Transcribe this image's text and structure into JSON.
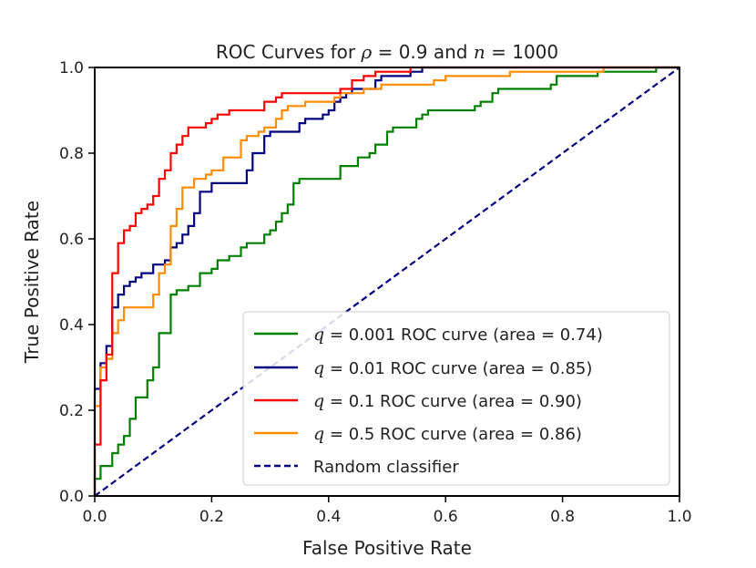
{
  "chart_data": {
    "type": "line",
    "title_parts": [
      "ROC Curves for ",
      "ρ",
      " = 0.9 and ",
      "n",
      " = 1000"
    ],
    "xlabel": "False Positive Rate",
    "ylabel": "True Positive Rate",
    "xlim": [
      0,
      1
    ],
    "ylim": [
      0,
      1
    ],
    "xticks": [
      "0.0",
      "0.2",
      "0.4",
      "0.6",
      "0.8",
      "1.0"
    ],
    "yticks": [
      "0.0",
      "0.2",
      "0.4",
      "0.6",
      "0.8",
      "1.0"
    ],
    "grid": false,
    "legend_position": "lower-right",
    "series": [
      {
        "id": "q0001",
        "name": "q = 0.001 ROC curve (area = 0.74)",
        "legend_var": "q",
        "legend_rest": " = 0.001 ROC curve (area = 0.74)",
        "color": "#008000",
        "style": "solid",
        "points": [
          [
            0,
            0
          ],
          [
            0,
            0.04
          ],
          [
            0.01,
            0.04
          ],
          [
            0.01,
            0.07
          ],
          [
            0.03,
            0.07
          ],
          [
            0.03,
            0.1
          ],
          [
            0.04,
            0.1
          ],
          [
            0.04,
            0.12
          ],
          [
            0.05,
            0.12
          ],
          [
            0.05,
            0.14
          ],
          [
            0.06,
            0.14
          ],
          [
            0.06,
            0.18
          ],
          [
            0.07,
            0.18
          ],
          [
            0.07,
            0.23
          ],
          [
            0.09,
            0.23
          ],
          [
            0.09,
            0.27
          ],
          [
            0.1,
            0.27
          ],
          [
            0.1,
            0.3
          ],
          [
            0.11,
            0.3
          ],
          [
            0.11,
            0.38
          ],
          [
            0.13,
            0.38
          ],
          [
            0.13,
            0.47
          ],
          [
            0.14,
            0.47
          ],
          [
            0.14,
            0.48
          ],
          [
            0.16,
            0.48
          ],
          [
            0.16,
            0.49
          ],
          [
            0.18,
            0.49
          ],
          [
            0.18,
            0.52
          ],
          [
            0.2,
            0.52
          ],
          [
            0.2,
            0.53
          ],
          [
            0.21,
            0.53
          ],
          [
            0.21,
            0.55
          ],
          [
            0.23,
            0.55
          ],
          [
            0.23,
            0.56
          ],
          [
            0.25,
            0.56
          ],
          [
            0.25,
            0.58
          ],
          [
            0.26,
            0.58
          ],
          [
            0.26,
            0.59
          ],
          [
            0.29,
            0.59
          ],
          [
            0.29,
            0.61
          ],
          [
            0.3,
            0.61
          ],
          [
            0.3,
            0.62
          ],
          [
            0.31,
            0.62
          ],
          [
            0.31,
            0.64
          ],
          [
            0.32,
            0.64
          ],
          [
            0.32,
            0.66
          ],
          [
            0.33,
            0.66
          ],
          [
            0.33,
            0.68
          ],
          [
            0.34,
            0.68
          ],
          [
            0.34,
            0.73
          ],
          [
            0.35,
            0.73
          ],
          [
            0.35,
            0.74
          ],
          [
            0.42,
            0.74
          ],
          [
            0.42,
            0.77
          ],
          [
            0.45,
            0.77
          ],
          [
            0.45,
            0.79
          ],
          [
            0.47,
            0.79
          ],
          [
            0.47,
            0.8
          ],
          [
            0.48,
            0.8
          ],
          [
            0.48,
            0.82
          ],
          [
            0.5,
            0.82
          ],
          [
            0.5,
            0.85
          ],
          [
            0.51,
            0.85
          ],
          [
            0.51,
            0.86
          ],
          [
            0.55,
            0.86
          ],
          [
            0.55,
            0.88
          ],
          [
            0.56,
            0.88
          ],
          [
            0.56,
            0.89
          ],
          [
            0.57,
            0.89
          ],
          [
            0.57,
            0.9
          ],
          [
            0.65,
            0.9
          ],
          [
            0.65,
            0.91
          ],
          [
            0.66,
            0.91
          ],
          [
            0.66,
            0.92
          ],
          [
            0.68,
            0.92
          ],
          [
            0.68,
            0.94
          ],
          [
            0.69,
            0.94
          ],
          [
            0.69,
            0.95
          ],
          [
            0.78,
            0.95
          ],
          [
            0.78,
            0.96
          ],
          [
            0.79,
            0.96
          ],
          [
            0.79,
            0.98
          ],
          [
            0.86,
            0.98
          ],
          [
            0.86,
            0.99
          ],
          [
            0.96,
            0.99
          ],
          [
            0.96,
            1.0
          ],
          [
            1.0,
            1.0
          ]
        ]
      },
      {
        "id": "q001",
        "name": "q = 0.01 ROC curve (area = 0.85)",
        "legend_var": "q",
        "legend_rest": " = 0.01 ROC curve (area = 0.85)",
        "color": "#000080",
        "style": "solid",
        "points": [
          [
            0,
            0
          ],
          [
            0,
            0.25
          ],
          [
            0.01,
            0.25
          ],
          [
            0.01,
            0.31
          ],
          [
            0.02,
            0.31
          ],
          [
            0.02,
            0.35
          ],
          [
            0.03,
            0.35
          ],
          [
            0.03,
            0.44
          ],
          [
            0.04,
            0.44
          ],
          [
            0.04,
            0.47
          ],
          [
            0.05,
            0.47
          ],
          [
            0.05,
            0.49
          ],
          [
            0.06,
            0.49
          ],
          [
            0.06,
            0.5
          ],
          [
            0.07,
            0.5
          ],
          [
            0.07,
            0.51
          ],
          [
            0.08,
            0.51
          ],
          [
            0.08,
            0.52
          ],
          [
            0.1,
            0.52
          ],
          [
            0.1,
            0.54
          ],
          [
            0.12,
            0.54
          ],
          [
            0.12,
            0.55
          ],
          [
            0.13,
            0.55
          ],
          [
            0.13,
            0.58
          ],
          [
            0.14,
            0.58
          ],
          [
            0.14,
            0.59
          ],
          [
            0.15,
            0.59
          ],
          [
            0.15,
            0.61
          ],
          [
            0.16,
            0.61
          ],
          [
            0.16,
            0.63
          ],
          [
            0.17,
            0.63
          ],
          [
            0.17,
            0.66
          ],
          [
            0.18,
            0.66
          ],
          [
            0.18,
            0.71
          ],
          [
            0.2,
            0.71
          ],
          [
            0.2,
            0.73
          ],
          [
            0.26,
            0.73
          ],
          [
            0.26,
            0.76
          ],
          [
            0.27,
            0.76
          ],
          [
            0.27,
            0.8
          ],
          [
            0.29,
            0.8
          ],
          [
            0.29,
            0.84
          ],
          [
            0.3,
            0.84
          ],
          [
            0.3,
            0.85
          ],
          [
            0.35,
            0.85
          ],
          [
            0.35,
            0.87
          ],
          [
            0.36,
            0.87
          ],
          [
            0.36,
            0.88
          ],
          [
            0.39,
            0.88
          ],
          [
            0.39,
            0.89
          ],
          [
            0.4,
            0.89
          ],
          [
            0.4,
            0.9
          ],
          [
            0.41,
            0.9
          ],
          [
            0.41,
            0.92
          ],
          [
            0.42,
            0.92
          ],
          [
            0.42,
            0.93
          ],
          [
            0.43,
            0.93
          ],
          [
            0.43,
            0.94
          ],
          [
            0.44,
            0.94
          ],
          [
            0.44,
            0.95
          ],
          [
            0.48,
            0.95
          ],
          [
            0.48,
            0.97
          ],
          [
            0.49,
            0.97
          ],
          [
            0.49,
            0.98
          ],
          [
            0.54,
            0.98
          ],
          [
            0.54,
            0.99
          ],
          [
            0.56,
            0.99
          ],
          [
            0.56,
            1.0
          ],
          [
            1.0,
            1.0
          ]
        ]
      },
      {
        "id": "q01",
        "name": "q = 0.1 ROC curve (area = 0.90)",
        "legend_var": "q",
        "legend_rest": " = 0.1 ROC curve (area = 0.90)",
        "color": "#ff0000",
        "style": "solid",
        "points": [
          [
            0,
            0
          ],
          [
            0,
            0.12
          ],
          [
            0.01,
            0.12
          ],
          [
            0.01,
            0.27
          ],
          [
            0.02,
            0.27
          ],
          [
            0.02,
            0.33
          ],
          [
            0.03,
            0.33
          ],
          [
            0.03,
            0.52
          ],
          [
            0.04,
            0.52
          ],
          [
            0.04,
            0.59
          ],
          [
            0.05,
            0.59
          ],
          [
            0.05,
            0.62
          ],
          [
            0.06,
            0.62
          ],
          [
            0.06,
            0.63
          ],
          [
            0.07,
            0.63
          ],
          [
            0.07,
            0.66
          ],
          [
            0.08,
            0.66
          ],
          [
            0.08,
            0.67
          ],
          [
            0.09,
            0.67
          ],
          [
            0.09,
            0.68
          ],
          [
            0.1,
            0.68
          ],
          [
            0.1,
            0.7
          ],
          [
            0.11,
            0.7
          ],
          [
            0.11,
            0.74
          ],
          [
            0.12,
            0.74
          ],
          [
            0.12,
            0.76
          ],
          [
            0.13,
            0.76
          ],
          [
            0.13,
            0.8
          ],
          [
            0.14,
            0.8
          ],
          [
            0.14,
            0.82
          ],
          [
            0.15,
            0.82
          ],
          [
            0.15,
            0.84
          ],
          [
            0.16,
            0.84
          ],
          [
            0.16,
            0.86
          ],
          [
            0.19,
            0.86
          ],
          [
            0.19,
            0.87
          ],
          [
            0.2,
            0.87
          ],
          [
            0.2,
            0.88
          ],
          [
            0.21,
            0.88
          ],
          [
            0.21,
            0.89
          ],
          [
            0.23,
            0.89
          ],
          [
            0.23,
            0.9
          ],
          [
            0.29,
            0.9
          ],
          [
            0.29,
            0.92
          ],
          [
            0.31,
            0.92
          ],
          [
            0.31,
            0.93
          ],
          [
            0.32,
            0.93
          ],
          [
            0.32,
            0.94
          ],
          [
            0.42,
            0.94
          ],
          [
            0.42,
            0.95
          ],
          [
            0.44,
            0.95
          ],
          [
            0.44,
            0.97
          ],
          [
            0.46,
            0.97
          ],
          [
            0.46,
            0.98
          ],
          [
            0.48,
            0.98
          ],
          [
            0.48,
            0.99
          ],
          [
            0.54,
            0.99
          ],
          [
            0.54,
            1.0
          ],
          [
            1.0,
            1.0
          ]
        ]
      },
      {
        "id": "q05",
        "name": "q = 0.5 ROC curve (area = 0.86)",
        "legend_var": "q",
        "legend_rest": " = 0.5 ROC curve (area = 0.86)",
        "color": "#ff8c00",
        "style": "solid",
        "points": [
          [
            0,
            0
          ],
          [
            0,
            0.21
          ],
          [
            0.01,
            0.21
          ],
          [
            0.01,
            0.3
          ],
          [
            0.02,
            0.3
          ],
          [
            0.02,
            0.32
          ],
          [
            0.03,
            0.32
          ],
          [
            0.03,
            0.38
          ],
          [
            0.04,
            0.38
          ],
          [
            0.04,
            0.41
          ],
          [
            0.05,
            0.41
          ],
          [
            0.05,
            0.44
          ],
          [
            0.1,
            0.44
          ],
          [
            0.1,
            0.47
          ],
          [
            0.11,
            0.47
          ],
          [
            0.11,
            0.52
          ],
          [
            0.12,
            0.52
          ],
          [
            0.12,
            0.54
          ],
          [
            0.13,
            0.54
          ],
          [
            0.13,
            0.63
          ],
          [
            0.14,
            0.63
          ],
          [
            0.14,
            0.67
          ],
          [
            0.15,
            0.67
          ],
          [
            0.15,
            0.72
          ],
          [
            0.17,
            0.72
          ],
          [
            0.17,
            0.74
          ],
          [
            0.19,
            0.74
          ],
          [
            0.19,
            0.75
          ],
          [
            0.2,
            0.75
          ],
          [
            0.2,
            0.76
          ],
          [
            0.22,
            0.76
          ],
          [
            0.22,
            0.79
          ],
          [
            0.25,
            0.79
          ],
          [
            0.25,
            0.83
          ],
          [
            0.26,
            0.83
          ],
          [
            0.26,
            0.84
          ],
          [
            0.28,
            0.84
          ],
          [
            0.28,
            0.85
          ],
          [
            0.29,
            0.85
          ],
          [
            0.29,
            0.86
          ],
          [
            0.31,
            0.86
          ],
          [
            0.31,
            0.88
          ],
          [
            0.32,
            0.88
          ],
          [
            0.32,
            0.9
          ],
          [
            0.33,
            0.9
          ],
          [
            0.33,
            0.91
          ],
          [
            0.36,
            0.91
          ],
          [
            0.36,
            0.92
          ],
          [
            0.41,
            0.92
          ],
          [
            0.41,
            0.93
          ],
          [
            0.42,
            0.93
          ],
          [
            0.42,
            0.94
          ],
          [
            0.46,
            0.94
          ],
          [
            0.46,
            0.95
          ],
          [
            0.49,
            0.95
          ],
          [
            0.49,
            0.96
          ],
          [
            0.58,
            0.96
          ],
          [
            0.58,
            0.97
          ],
          [
            0.6,
            0.97
          ],
          [
            0.6,
            0.98
          ],
          [
            0.71,
            0.98
          ],
          [
            0.71,
            0.99
          ],
          [
            0.87,
            0.99
          ],
          [
            0.87,
            1.0
          ],
          [
            1.0,
            1.0
          ]
        ]
      },
      {
        "id": "random",
        "name": "Random classifier",
        "legend_var": "",
        "legend_rest": "Random classifier",
        "color": "#000080",
        "style": "dashed",
        "points": [
          [
            0,
            0
          ],
          [
            1,
            1
          ]
        ]
      }
    ]
  }
}
